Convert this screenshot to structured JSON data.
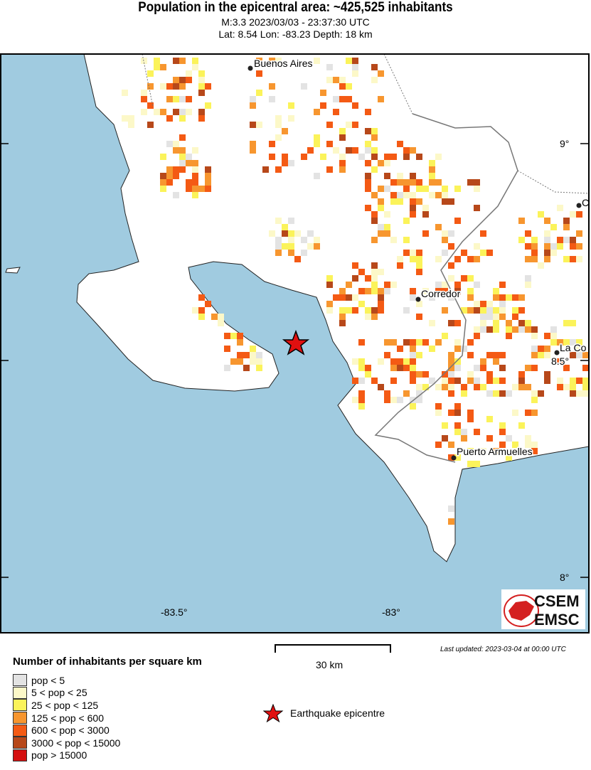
{
  "header": {
    "title": "Population in the epicentral area: ~425,525 inhabitants",
    "subtitle_event": "M:3.3 2023/03/03 - 23:37:30 UTC",
    "subtitle_location": "Lat: 8.54 Lon: -83.23 Depth: 18 km"
  },
  "map": {
    "colors": {
      "sea": "#a0cbe0",
      "land": "#ffffff",
      "border": "#777777"
    },
    "cities": [
      {
        "name": "Buenos Aires"
      },
      {
        "name": "Corredor"
      },
      {
        "name": "La Co"
      },
      {
        "name": "Puerto Armuelles"
      },
      {
        "name": "C"
      }
    ],
    "lat_labels": [
      "9°",
      "8.5°",
      "8°"
    ],
    "lon_labels": [
      "-83.5°",
      "-83°"
    ],
    "epicentre_icon": "red-star-icon"
  },
  "scale": {
    "label": "30 km"
  },
  "last_updated": "Last updated: 2023-03-04 at 00:00 UTC",
  "legend": {
    "title": "Number of inhabitants per square km",
    "items": [
      {
        "label": "pop < 5",
        "color": "#e3e3e3"
      },
      {
        "label": "5 < pop < 25",
        "color": "#fcf8c8"
      },
      {
        "label": "25 < pop < 125",
        "color": "#fbf35a"
      },
      {
        "label": "125 < pop < 600",
        "color": "#f7962f"
      },
      {
        "label": "600 < pop < 3000",
        "color": "#f45a14"
      },
      {
        "label": "3000 < pop < 15000",
        "color": "#b7481a"
      },
      {
        "label": "pop > 15000",
        "color": "#d41010"
      }
    ],
    "epicentre_label": "Earthquake epicentre"
  },
  "logo": {
    "top": "CSEM",
    "bottom": "EMSC"
  }
}
